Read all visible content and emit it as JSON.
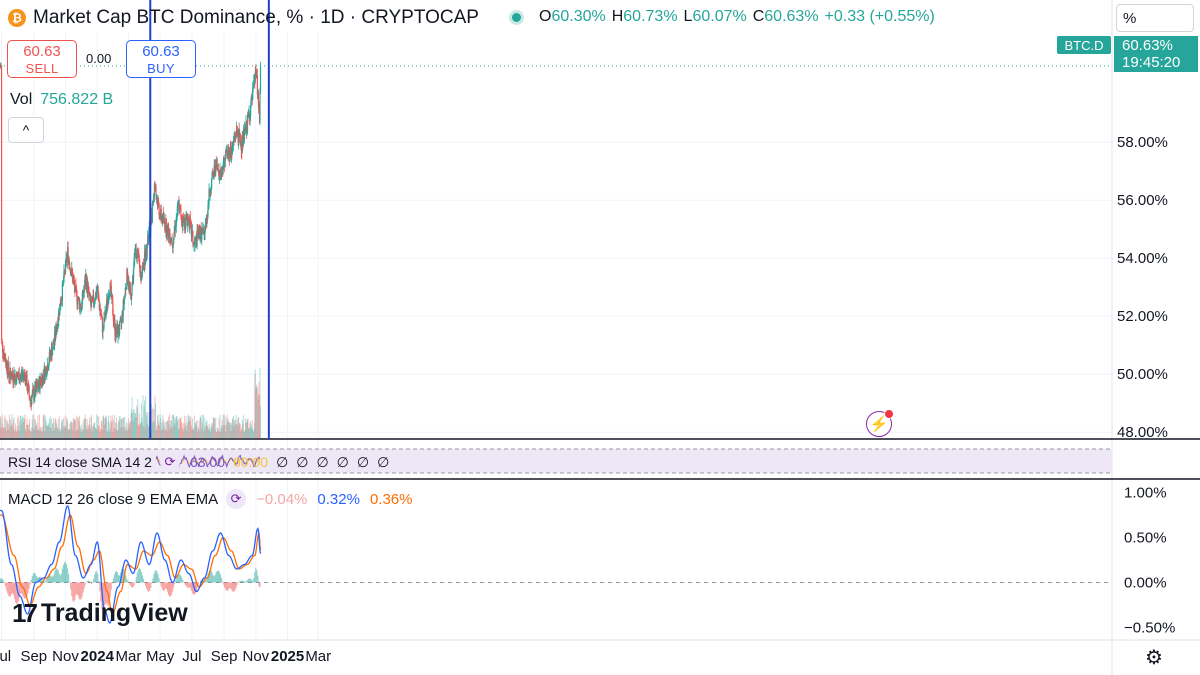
{
  "header": {
    "title": "Market Cap BTC Dominance, % · 1D · CRYPTOCAP",
    "logo_letter": "₿",
    "ohlc": {
      "o_label": "O",
      "o": "60.30%",
      "h_label": "H",
      "h": "60.73%",
      "l_label": "L",
      "l": "60.07%",
      "c_label": "C",
      "c": "60.63%",
      "change": "+0.33 (+0.55%)"
    },
    "scale_mode": "%"
  },
  "trade": {
    "sell_price": "60.63",
    "sell_label": "SELL",
    "spread": "0.00",
    "buy_price": "60.63",
    "buy_label": "BUY"
  },
  "volume": {
    "label": "Vol",
    "value": "756.822 B"
  },
  "collapse_icon": "^",
  "price_tag": {
    "symbol": "BTC.D",
    "price": "60.63%",
    "countdown": "19:45:20"
  },
  "rsi": {
    "legend": "RSI 14 close SMA 14 2",
    "value1": "63.00",
    "value2": "60.00",
    "empty_values": [
      "∅",
      "∅",
      "∅",
      "∅",
      "∅",
      "∅"
    ]
  },
  "macd": {
    "legend": "MACD 12 26 close 9 EMA EMA",
    "hist": "−0.04%",
    "macd": "0.32%",
    "signal": "0.36%"
  },
  "brand": {
    "mark": "17",
    "name": "TradingView"
  },
  "colors": {
    "up": "#26a69a",
    "down": "#ef5350",
    "macd_line": "#2962ff",
    "signal_line": "#ff6d00",
    "marker_line": "#1e3fcf",
    "rsi_band": "#ede7f6"
  },
  "chart_data": [
    {
      "type": "candlestick",
      "title": "Market Cap BTC Dominance, %",
      "x_tick_labels": [
        "Jul",
        "Sep",
        "Nov",
        "2024",
        "Mar",
        "May",
        "Jul",
        "Sep",
        "Nov",
        "2025",
        "Mar"
      ],
      "y_tick_labels": [
        "58.00%",
        "56.00%",
        "54.00%",
        "52.00%",
        "50.00%",
        "48.00%"
      ],
      "ylim": [
        47.8,
        61.8
      ],
      "y_unit": "%",
      "approx_close_series": [
        [
          "2023-07-01",
          51.1
        ],
        [
          "2023-07-15",
          50.0
        ],
        [
          "2023-08-01",
          49.9
        ],
        [
          "2023-08-15",
          50.0
        ],
        [
          "2023-08-25",
          49.1
        ],
        [
          "2023-09-10",
          49.6
        ],
        [
          "2023-09-25",
          50.2
        ],
        [
          "2023-10-10",
          51.1
        ],
        [
          "2023-10-25",
          52.8
        ],
        [
          "2023-11-05",
          54.2
        ],
        [
          "2023-11-20",
          52.8
        ],
        [
          "2023-12-01",
          52.3
        ],
        [
          "2023-12-10",
          53.3
        ],
        [
          "2023-12-20",
          52.3
        ],
        [
          "2024-01-01",
          52.9
        ],
        [
          "2024-01-12",
          51.5
        ],
        [
          "2024-01-25",
          53.1
        ],
        [
          "2024-02-05",
          51.4
        ],
        [
          "2024-02-15",
          51.6
        ],
        [
          "2024-02-28",
          53.5
        ],
        [
          "2024-03-05",
          52.6
        ],
        [
          "2024-03-15",
          54.4
        ],
        [
          "2024-03-25",
          53.4
        ],
        [
          "2024-04-05",
          54.3
        ],
        [
          "2024-04-15",
          55.5
        ],
        [
          "2024-04-20",
          56.5
        ],
        [
          "2024-05-01",
          55.5
        ],
        [
          "2024-05-15",
          55.0
        ],
        [
          "2024-05-25",
          54.6
        ],
        [
          "2024-06-05",
          55.8
        ],
        [
          "2024-06-15",
          55.2
        ],
        [
          "2024-06-25",
          55.4
        ],
        [
          "2024-07-05",
          54.4
        ],
        [
          "2024-07-15",
          54.9
        ],
        [
          "2024-07-25",
          54.8
        ],
        [
          "2024-08-05",
          56.4
        ],
        [
          "2024-08-15",
          57.2
        ],
        [
          "2024-08-25",
          56.9
        ],
        [
          "2024-09-05",
          57.6
        ],
        [
          "2024-09-15",
          57.7
        ],
        [
          "2024-09-25",
          58.4
        ],
        [
          "2024-10-05",
          57.9
        ],
        [
          "2024-10-15",
          58.6
        ],
        [
          "2024-10-25",
          59.5
        ],
        [
          "2024-11-01",
          60.4
        ],
        [
          "2024-11-05",
          59.7
        ],
        [
          "2024-11-08",
          58.8
        ],
        [
          "2024-11-10",
          60.6
        ]
      ],
      "marker_dates": [
        "2024-04-12",
        "2024-11-26"
      ],
      "volume_label": "Vol 756.822 B"
    },
    {
      "type": "line",
      "title": "RSI 14 close SMA 14 2",
      "values": {
        "rsi": 63.0,
        "rsi_sma": 60.0
      }
    },
    {
      "type": "line",
      "title": "MACD 12 26 close 9 EMA EMA",
      "y_tick_labels": [
        "1.00%",
        "0.50%",
        "0.00%",
        "−0.50%"
      ],
      "ylim": [
        -0.55,
        1.05
      ],
      "series": [
        {
          "name": "MACD",
          "points": [
            [
              "2023-07-01",
              0.8
            ],
            [
              "2023-07-20",
              0.2
            ],
            [
              "2023-08-05",
              -0.15
            ],
            [
              "2023-08-20",
              -0.35
            ],
            [
              "2023-09-05",
              0.0
            ],
            [
              "2023-09-20",
              0.05
            ],
            [
              "2023-10-05",
              0.2
            ],
            [
              "2023-10-20",
              0.45
            ],
            [
              "2023-11-05",
              0.85
            ],
            [
              "2023-11-20",
              0.3
            ],
            [
              "2023-12-05",
              0.05
            ],
            [
              "2023-12-20",
              0.2
            ],
            [
              "2024-01-01",
              0.45
            ],
            [
              "2024-01-15",
              -0.3
            ],
            [
              "2024-01-25",
              -0.45
            ],
            [
              "2024-02-10",
              -0.05
            ],
            [
              "2024-02-25",
              0.25
            ],
            [
              "2024-03-10",
              0.1
            ],
            [
              "2024-03-25",
              0.45
            ],
            [
              "2024-04-10",
              0.2
            ],
            [
              "2024-04-25",
              0.55
            ],
            [
              "2024-05-10",
              0.25
            ],
            [
              "2024-05-25",
              0.0
            ],
            [
              "2024-06-10",
              0.25
            ],
            [
              "2024-06-25",
              0.1
            ],
            [
              "2024-07-10",
              -0.1
            ],
            [
              "2024-07-25",
              0.05
            ],
            [
              "2024-08-10",
              0.35
            ],
            [
              "2024-08-25",
              0.55
            ],
            [
              "2024-09-10",
              0.3
            ],
            [
              "2024-09-25",
              0.15
            ],
            [
              "2024-10-10",
              0.2
            ],
            [
              "2024-10-25",
              0.3
            ],
            [
              "2024-11-05",
              0.6
            ],
            [
              "2024-11-10",
              0.32
            ]
          ]
        },
        {
          "name": "Signal",
          "points": [
            [
              "2023-07-01",
              0.75
            ],
            [
              "2023-07-25",
              0.3
            ],
            [
              "2023-08-10",
              -0.05
            ],
            [
              "2023-08-25",
              -0.25
            ],
            [
              "2023-09-10",
              -0.05
            ],
            [
              "2023-09-25",
              0.05
            ],
            [
              "2023-10-10",
              0.15
            ],
            [
              "2023-10-25",
              0.4
            ],
            [
              "2023-11-10",
              0.75
            ],
            [
              "2023-11-25",
              0.4
            ],
            [
              "2023-12-10",
              0.1
            ],
            [
              "2023-12-25",
              0.25
            ],
            [
              "2024-01-05",
              0.35
            ],
            [
              "2024-01-20",
              -0.1
            ],
            [
              "2024-01-30",
              -0.35
            ],
            [
              "2024-02-15",
              -0.1
            ],
            [
              "2024-02-28",
              0.2
            ],
            [
              "2024-03-15",
              0.15
            ],
            [
              "2024-03-30",
              0.35
            ],
            [
              "2024-04-15",
              0.3
            ],
            [
              "2024-04-30",
              0.45
            ],
            [
              "2024-05-15",
              0.3
            ],
            [
              "2024-05-30",
              0.05
            ],
            [
              "2024-06-15",
              0.2
            ],
            [
              "2024-06-30",
              0.15
            ],
            [
              "2024-07-15",
              -0.05
            ],
            [
              "2024-07-30",
              0.05
            ],
            [
              "2024-08-15",
              0.3
            ],
            [
              "2024-08-30",
              0.5
            ],
            [
              "2024-09-15",
              0.35
            ],
            [
              "2024-09-30",
              0.15
            ],
            [
              "2024-10-15",
              0.2
            ],
            [
              "2024-10-30",
              0.3
            ],
            [
              "2024-11-07",
              0.55
            ],
            [
              "2024-11-10",
              0.36
            ]
          ]
        }
      ]
    }
  ]
}
